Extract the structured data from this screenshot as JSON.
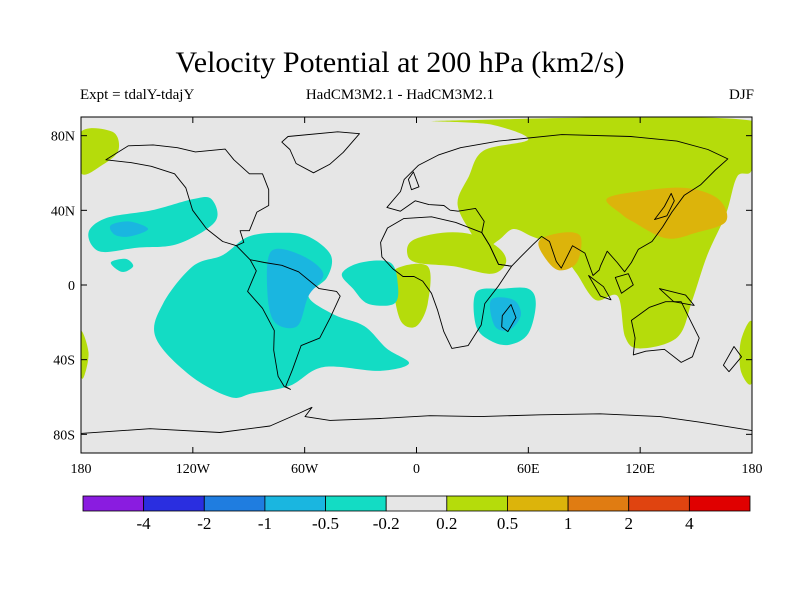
{
  "header": {
    "title": "Velocity Potential at 200 hPa (km2/s)",
    "experiment": "Expt = tdalY-tdajY",
    "models": "HadCM3M2.1 - HadCM3M2.1",
    "season": "DJF"
  },
  "chart_data": {
    "type": "heatmap",
    "title": "Velocity Potential at 200 hPa (km2/s)",
    "xlabel": "",
    "ylabel": "",
    "xlim": [
      -180,
      180
    ],
    "ylim": [
      -90,
      90
    ],
    "x_ticks": [
      {
        "value": -180,
        "label": "180"
      },
      {
        "value": -120,
        "label": "120W"
      },
      {
        "value": -60,
        "label": "60W"
      },
      {
        "value": 0,
        "label": "0"
      },
      {
        "value": 60,
        "label": "60E"
      },
      {
        "value": 120,
        "label": "120E"
      },
      {
        "value": 180,
        "label": "180"
      }
    ],
    "y_ticks": [
      {
        "value": 80,
        "label": "80N"
      },
      {
        "value": 40,
        "label": "40N"
      },
      {
        "value": 0,
        "label": "0"
      },
      {
        "value": -40,
        "label": "40S"
      },
      {
        "value": -80,
        "label": "80S"
      }
    ],
    "colorbar": {
      "labels": [
        "-4",
        "-2",
        "-1",
        "-0.5",
        "-0.2",
        "0.2",
        "0.5",
        "1",
        "2",
        "4"
      ],
      "colors": [
        "#8a1ce0",
        "#2a2ee0",
        "#1f7de0",
        "#1ab6e0",
        "#13dcc4",
        "#e6e6e6",
        "#b5dc0b",
        "#dcb40b",
        "#e07c12",
        "#e04410",
        "#e00000"
      ]
    },
    "regions": [
      {
        "level": "0.2 to 0.5",
        "color": "#b5dc0b",
        "area": "North Pacific / Alaska",
        "points": [
          [
            -180,
            82
          ],
          [
            -163,
            82
          ],
          [
            -160,
            72
          ],
          [
            -169,
            64
          ],
          [
            -180,
            60
          ]
        ]
      },
      {
        "level": "0.2 to 0.5",
        "color": "#b5dc0b",
        "area": "Eurasia / Arctic / Maritime Continent",
        "points": [
          [
            15,
            88
          ],
          [
            180,
            88
          ],
          [
            180,
            62
          ],
          [
            172,
            58
          ],
          [
            166,
            38
          ],
          [
            156,
            16
          ],
          [
            148,
            -8
          ],
          [
            140,
            -28
          ],
          [
            120,
            -34
          ],
          [
            112,
            -28
          ],
          [
            108,
            -6
          ],
          [
            96,
            -8
          ],
          [
            86,
            6
          ],
          [
            80,
            14
          ],
          [
            72,
            22
          ],
          [
            62,
            26
          ],
          [
            52,
            30
          ],
          [
            44,
            24
          ],
          [
            36,
            20
          ],
          [
            28,
            30
          ],
          [
            22,
            44
          ],
          [
            28,
            58
          ],
          [
            36,
            72
          ],
          [
            60,
            78
          ],
          [
            40,
            86
          ]
        ]
      },
      {
        "level": "0.2 to 0.5",
        "color": "#b5dc0b",
        "area": "North Africa / Arabia",
        "points": [
          [
            -2,
            24
          ],
          [
            14,
            28
          ],
          [
            30,
            27
          ],
          [
            44,
            20
          ],
          [
            48,
            12
          ],
          [
            40,
            6
          ],
          [
            20,
            10
          ],
          [
            0,
            12
          ],
          [
            -5,
            17
          ]
        ]
      },
      {
        "level": "0.2 to 0.5",
        "color": "#b5dc0b",
        "area": "Gulf of Guinea",
        "points": [
          [
            -12,
            8
          ],
          [
            6,
            10
          ],
          [
            6,
            -10
          ],
          [
            0,
            -22
          ],
          [
            -8,
            -20
          ],
          [
            -12,
            -5
          ]
        ]
      },
      {
        "level": "0.2 to 0.5",
        "color": "#b5dc0b",
        "area": "South Pacific (west edge)",
        "points": [
          [
            -180,
            -25
          ],
          [
            -176,
            -36
          ],
          [
            -178,
            -48
          ],
          [
            -180,
            -48
          ]
        ]
      },
      {
        "level": "0.2 to 0.5",
        "color": "#b5dc0b",
        "area": "South Pacific (east edge)",
        "points": [
          [
            180,
            -20
          ],
          [
            174,
            -30
          ],
          [
            174,
            -46
          ],
          [
            180,
            -52
          ]
        ]
      },
      {
        "level": "0.5 to 1",
        "color": "#dcb40b",
        "area": "East Asia",
        "points": [
          [
            102,
            46
          ],
          [
            118,
            50
          ],
          [
            144,
            52
          ],
          [
            162,
            46
          ],
          [
            166,
            34
          ],
          [
            150,
            28
          ],
          [
            134,
            25
          ],
          [
            116,
            34
          ],
          [
            110,
            38
          ]
        ]
      },
      {
        "level": "0.5 to 1",
        "color": "#dcb40b",
        "area": "India",
        "points": [
          [
            66,
            24
          ],
          [
            78,
            28
          ],
          [
            88,
            26
          ],
          [
            86,
            12
          ],
          [
            76,
            8
          ],
          [
            68,
            16
          ]
        ]
      },
      {
        "level": "-0.5 to -0.2",
        "color": "#13dcc4",
        "area": "North-east Pacific",
        "points": [
          [
            -176,
            28
          ],
          [
            -166,
            36
          ],
          [
            -142,
            40
          ],
          [
            -120,
            46
          ],
          [
            -110,
            46
          ],
          [
            -108,
            34
          ],
          [
            -128,
            22
          ],
          [
            -150,
            20
          ],
          [
            -170,
            18
          ]
        ]
      },
      {
        "level": "-0.5 to -0.2",
        "color": "#13dcc4",
        "area": "Tropical Americas",
        "points": [
          [
            -120,
            10
          ],
          [
            -104,
            16
          ],
          [
            -90,
            26
          ],
          [
            -72,
            28
          ],
          [
            -58,
            26
          ],
          [
            -46,
            16
          ],
          [
            -48,
            4
          ],
          [
            -58,
            -6
          ],
          [
            -44,
            -16
          ],
          [
            -28,
            -22
          ],
          [
            -16,
            -34
          ],
          [
            -4,
            -42
          ],
          [
            -20,
            -46
          ],
          [
            -50,
            -44
          ],
          [
            -68,
            -54
          ],
          [
            -88,
            -58
          ],
          [
            -100,
            -60
          ],
          [
            -122,
            -48
          ],
          [
            -140,
            -28
          ],
          [
            -136,
            -10
          ]
        ]
      },
      {
        "level": "-0.5 to -0.2",
        "color": "#13dcc4",
        "area": "Central Atlantic",
        "points": [
          [
            -40,
            6
          ],
          [
            -30,
            12
          ],
          [
            -14,
            12
          ],
          [
            -10,
            0
          ],
          [
            -12,
            -10
          ],
          [
            -26,
            -10
          ],
          [
            -34,
            -2
          ]
        ]
      },
      {
        "level": "-0.5 to -0.2",
        "color": "#13dcc4",
        "area": "Madagascar / SW Indian Ocean",
        "points": [
          [
            32,
            -4
          ],
          [
            46,
            -2
          ],
          [
            60,
            -2
          ],
          [
            64,
            -10
          ],
          [
            60,
            -26
          ],
          [
            50,
            -32
          ],
          [
            40,
            -30
          ],
          [
            32,
            -22
          ]
        ]
      },
      {
        "level": "-0.5 to -0.2",
        "color": "#13dcc4",
        "area": "Hawaii spot",
        "points": [
          [
            -164,
            12
          ],
          [
            -156,
            14
          ],
          [
            -152,
            10
          ],
          [
            -158,
            7
          ]
        ]
      },
      {
        "level": "-1 to -0.5",
        "color": "#1ab6e0",
        "area": "North-east Pacific core",
        "points": [
          [
            -164,
            32
          ],
          [
            -154,
            34
          ],
          [
            -144,
            30
          ],
          [
            -154,
            26
          ],
          [
            -162,
            27
          ]
        ]
      },
      {
        "level": "-1 to -0.5",
        "color": "#1ab6e0",
        "area": "South America core",
        "points": [
          [
            -78,
            18
          ],
          [
            -62,
            16
          ],
          [
            -50,
            6
          ],
          [
            -58,
            -6
          ],
          [
            -64,
            -22
          ],
          [
            -76,
            -20
          ],
          [
            -80,
            -4
          ]
        ]
      },
      {
        "level": "-1 to -0.5",
        "color": "#1ab6e0",
        "area": "Madagascar core",
        "points": [
          [
            40,
            -8
          ],
          [
            52,
            -8
          ],
          [
            56,
            -16
          ],
          [
            50,
            -24
          ],
          [
            42,
            -22
          ]
        ]
      }
    ]
  }
}
